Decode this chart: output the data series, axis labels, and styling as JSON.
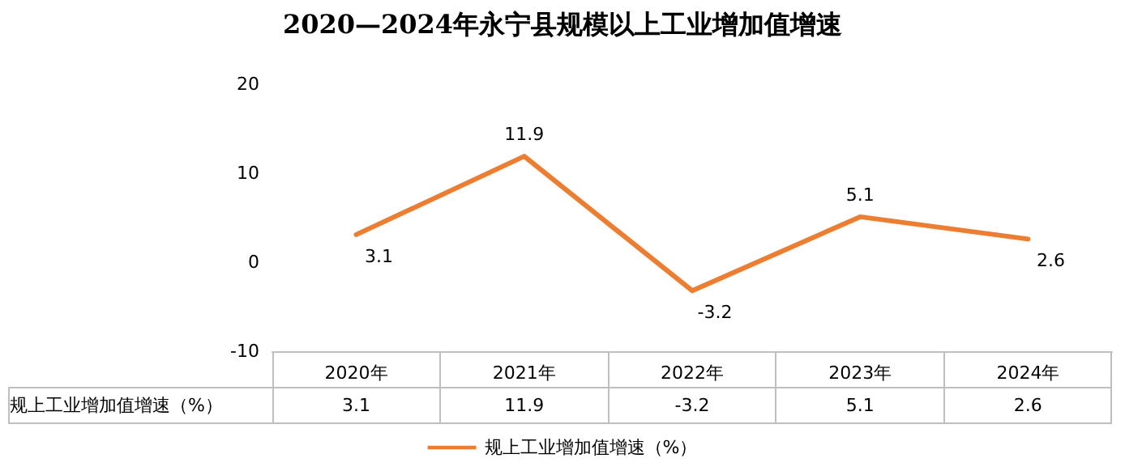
{
  "chart_data": {
    "type": "line",
    "title": "2020—2024年永宁县规模以上工业增加值增速",
    "categories": [
      "2020年",
      "2021年",
      "2022年",
      "2023年",
      "2024年"
    ],
    "series": [
      {
        "name": "规上工业增加值增速（%）",
        "color": "#ed7d31",
        "values": [
          3.1,
          11.9,
          -3.2,
          5.1,
          2.6
        ],
        "value_labels": [
          "3.1",
          "11.9",
          "-3.2",
          "5.1",
          "2.6"
        ]
      }
    ],
    "ylim": [
      -10,
      20
    ],
    "yticks": [
      -10,
      0,
      10,
      20
    ],
    "grid": false,
    "legend": "bottom",
    "annotations": [
      "3.1",
      "11.9",
      "-3.2",
      "5.1",
      "2.6"
    ],
    "marker": "none",
    "line_style": "solid"
  }
}
